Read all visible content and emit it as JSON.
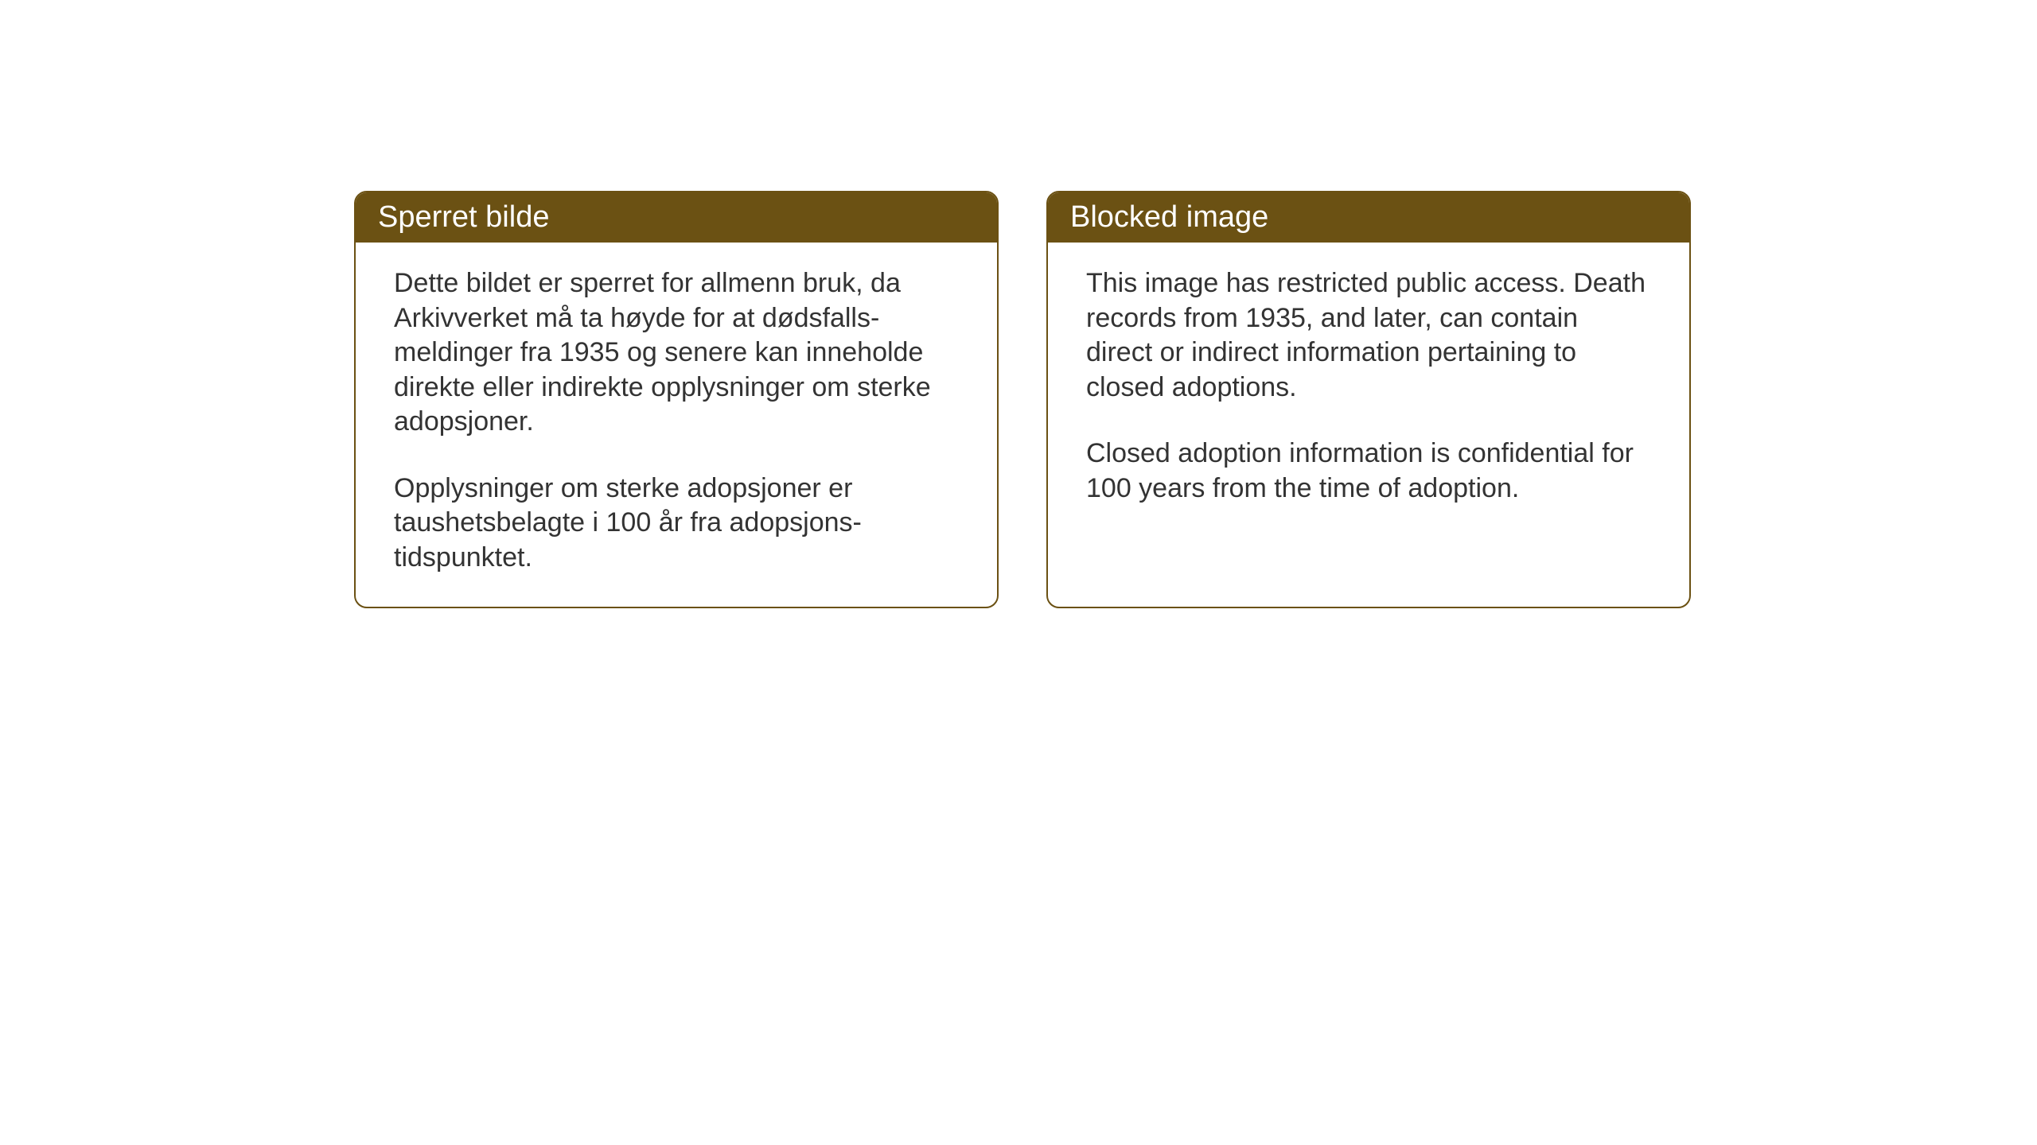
{
  "cards": {
    "norwegian": {
      "title": "Sperret bilde",
      "paragraph1": "Dette bildet er sperret for allmenn bruk, da Arkivverket må ta høyde for at dødsfalls-meldinger fra 1935 og senere kan inneholde direkte eller indirekte opplysninger om sterke adopsjoner.",
      "paragraph2": "Opplysninger om sterke adopsjoner er taushetsbelagte i 100 år fra adopsjons-tidspunktet."
    },
    "english": {
      "title": "Blocked image",
      "paragraph1": "This image has restricted public access. Death records from 1935, and later, can contain direct or indirect information pertaining to closed adoptions.",
      "paragraph2": "Closed adoption information is confidential for 100 years from the time of adoption."
    }
  },
  "style": {
    "header_background": "#6b5113",
    "header_text_color": "#ffffff",
    "border_color": "#6b5113",
    "body_text_color": "#333333",
    "background_color": "#ffffff",
    "header_fontsize": 38,
    "body_fontsize": 34,
    "border_radius": 16,
    "border_width": 2
  }
}
